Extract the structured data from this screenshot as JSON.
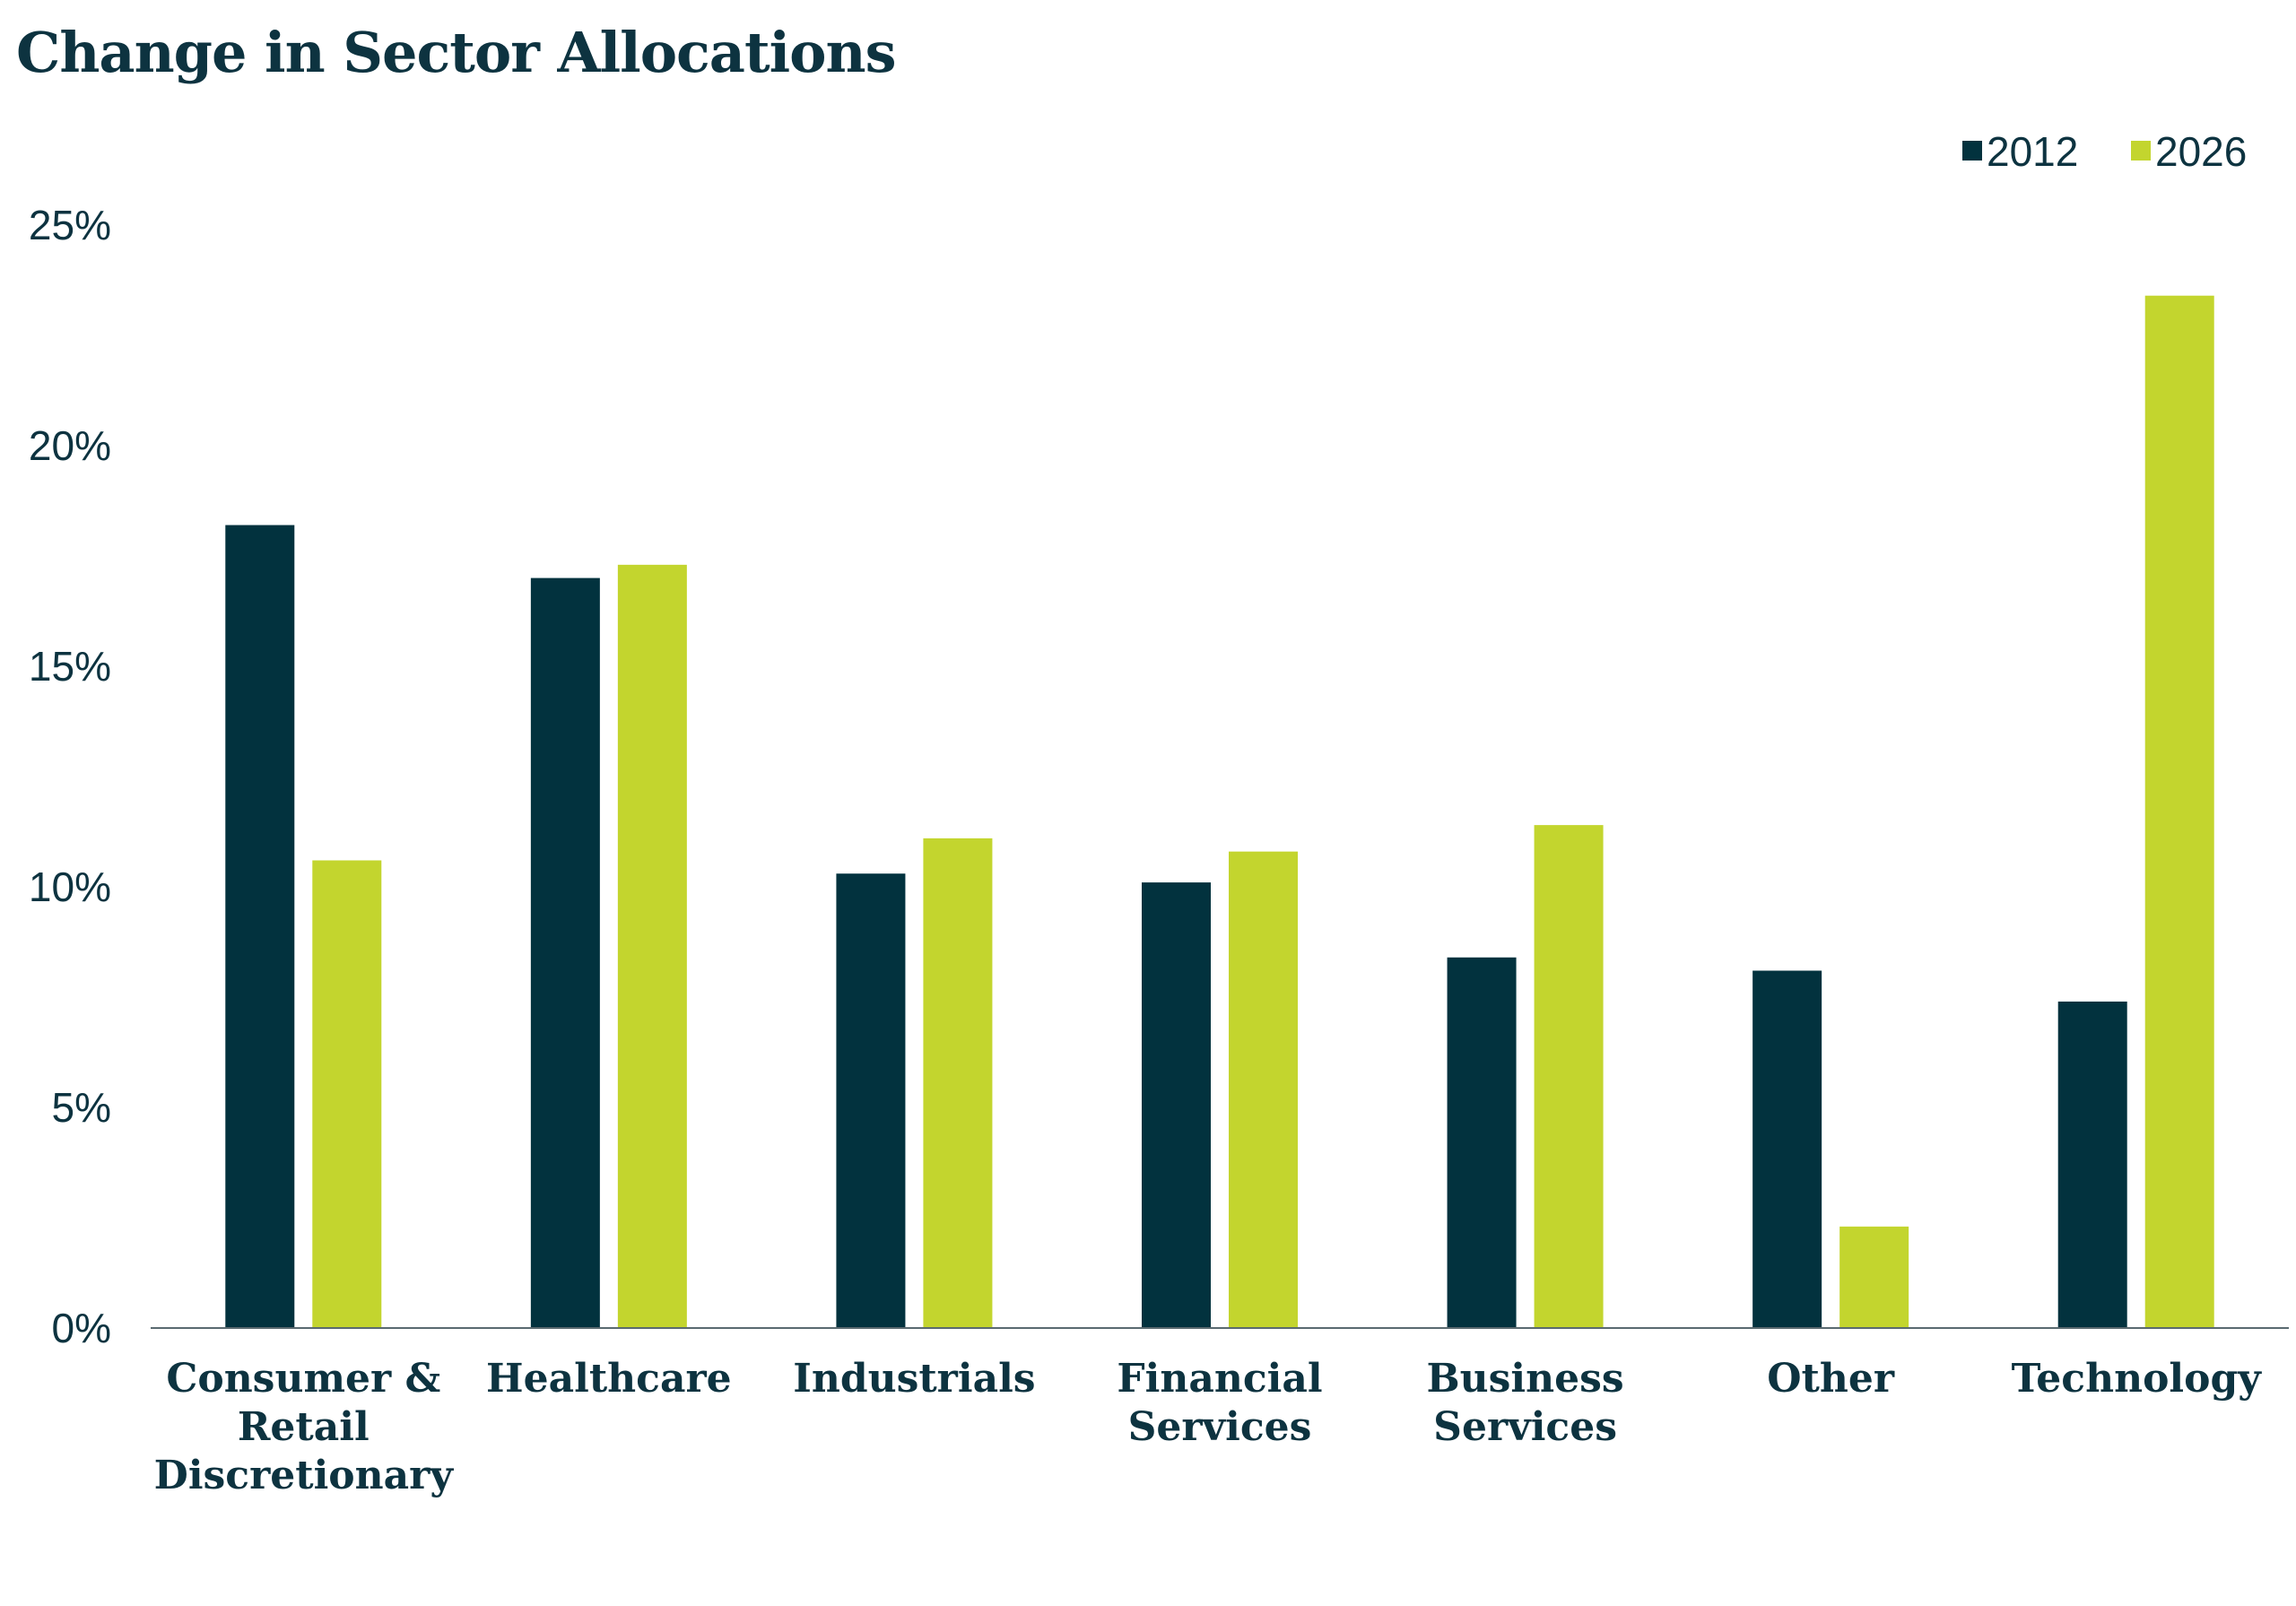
{
  "chart_data": {
    "type": "bar",
    "title": "Change in Sector Allocations",
    "xlabel": "",
    "ylabel": "",
    "categories": [
      [
        "Consumer &",
        "Retail",
        "Discretionary"
      ],
      [
        "Healthcare"
      ],
      [
        "Industrials"
      ],
      [
        "Financial",
        "Services"
      ],
      [
        "Business",
        "Services"
      ],
      [
        "Other"
      ],
      [
        "Technology"
      ]
    ],
    "series": [
      {
        "name": "2012",
        "color": "#02323e",
        "values": [
          18.2,
          17.0,
          10.3,
          10.1,
          8.4,
          8.1,
          7.4
        ]
      },
      {
        "name": "2026",
        "color": "#c3d52e",
        "values": [
          10.6,
          17.3,
          11.1,
          10.8,
          11.4,
          2.3,
          23.4
        ]
      }
    ],
    "ylim": [
      0,
      25
    ],
    "yticks": [
      0,
      5,
      10,
      15,
      20,
      25
    ],
    "ytick_labels": [
      "0%",
      "5%",
      "10%",
      "15%",
      "20%",
      "25%"
    ],
    "grid": false,
    "legend_position": "top-right"
  }
}
